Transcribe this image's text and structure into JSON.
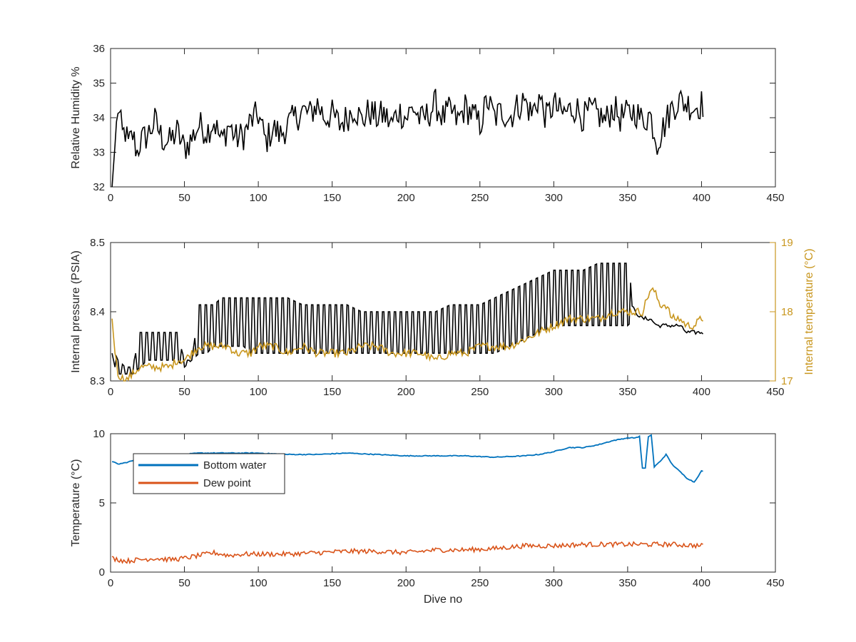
{
  "figure": {
    "xlabel": "Dive no"
  },
  "colors": {
    "axis": "#262626",
    "rh_line": "#000000",
    "pressure_line": "#000000",
    "internal_temp_line": "#C8961E",
    "bottom_water": "#0072BD",
    "dew_point": "#D95319"
  },
  "chart_data": [
    {
      "id": "rh",
      "type": "line",
      "title": "",
      "xlabel": "",
      "ylabel": "Relative Humidity %",
      "xlim": [
        0,
        450
      ],
      "ylim": [
        32,
        36
      ],
      "xticks": [
        0,
        50,
        100,
        150,
        200,
        250,
        300,
        350,
        400,
        450
      ],
      "yticks": [
        32,
        33,
        34,
        35,
        36
      ],
      "grid": false,
      "series": [
        {
          "x": [
            1,
            3,
            5,
            8,
            10,
            12,
            15,
            18,
            20,
            25,
            30,
            35,
            40,
            45,
            50,
            55,
            60,
            65,
            70,
            75,
            80,
            85,
            90,
            95,
            100,
            105,
            110,
            115,
            120,
            125,
            130,
            135,
            140,
            145,
            150,
            155,
            160,
            165,
            170,
            175,
            180,
            185,
            190,
            195,
            200,
            205,
            210,
            215,
            220,
            225,
            230,
            235,
            240,
            245,
            250,
            255,
            260,
            265,
            270,
            275,
            280,
            285,
            290,
            295,
            300,
            305,
            310,
            315,
            320,
            325,
            330,
            335,
            340,
            345,
            350,
            355,
            360,
            365,
            370,
            375,
            380,
            385,
            390,
            395,
            400
          ],
          "y": [
            32.0,
            33.2,
            34.3,
            33.5,
            33.6,
            33.2,
            33.5,
            33.0,
            33.3,
            33.5,
            33.9,
            33.4,
            33.3,
            33.6,
            33.1,
            33.4,
            33.8,
            33.6,
            33.9,
            33.3,
            33.8,
            33.4,
            33.5,
            33.9,
            34.1,
            33.3,
            33.7,
            33.5,
            33.8,
            34.0,
            34.2,
            34.1,
            34.4,
            34.0,
            34.1,
            33.8,
            34.0,
            34.3,
            33.9,
            34.2,
            34.0,
            34.1,
            33.8,
            34.2,
            34.0,
            34.3,
            33.9,
            34.1,
            34.4,
            34.0,
            34.2,
            33.9,
            34.3,
            34.1,
            33.8,
            34.5,
            34.0,
            34.2,
            34.0,
            34.3,
            34.5,
            34.1,
            34.6,
            34.0,
            34.4,
            34.1,
            34.2,
            34.3,
            34.0,
            34.2,
            34.1,
            33.9,
            34.3,
            34.0,
            34.1,
            34.2,
            33.9,
            34.1,
            33.3,
            33.8,
            34.3,
            34.5,
            34.4,
            34.3,
            34.4
          ],
          "color": "#000000"
        }
      ]
    },
    {
      "id": "pressure",
      "type": "line",
      "title": "",
      "xlabel": "",
      "ylabel": "Internal pressure (PSIA)",
      "ylabel_right": "Internal temperature (°C)",
      "xlim": [
        0,
        450
      ],
      "ylim": [
        8.3,
        8.5
      ],
      "ylim_right": [
        17,
        19
      ],
      "xticks": [
        0,
        50,
        100,
        150,
        200,
        250,
        300,
        350,
        400,
        450
      ],
      "yticks": [
        8.3,
        8.4,
        8.5
      ],
      "yticks_right": [
        17,
        18,
        19
      ],
      "grid": false,
      "series": [
        {
          "axis": "left",
          "x": [
            1,
            3,
            5,
            10,
            15,
            20,
            25,
            30,
            35,
            40,
            45,
            50,
            55,
            60,
            65,
            70,
            75,
            80,
            85,
            90,
            95,
            100,
            110,
            120,
            130,
            140,
            150,
            160,
            170,
            180,
            190,
            200,
            210,
            220,
            230,
            240,
            250,
            260,
            270,
            280,
            290,
            300,
            310,
            320,
            330,
            340,
            350,
            355,
            360,
            365,
            370,
            375,
            380,
            385,
            390,
            395,
            400
          ],
          "y": [
            8.34,
            8.32,
            8.32,
            8.31,
            8.31,
            8.32,
            8.35,
            8.36,
            8.35,
            8.35,
            8.34,
            8.33,
            8.33,
            8.37,
            8.38,
            8.38,
            8.39,
            8.39,
            8.39,
            8.39,
            8.38,
            8.38,
            8.38,
            8.38,
            8.37,
            8.37,
            8.37,
            8.37,
            8.37,
            8.37,
            8.37,
            8.37,
            8.37,
            8.37,
            8.37,
            8.38,
            8.38,
            8.38,
            8.39,
            8.4,
            8.41,
            8.41,
            8.41,
            8.42,
            8.42,
            8.42,
            8.42,
            8.4,
            8.39,
            8.39,
            8.38,
            8.38,
            8.38,
            8.38,
            8.37,
            8.37,
            8.37
          ],
          "y_high": [
            8.34,
            8.34,
            8.33,
            8.32,
            8.32,
            8.37,
            8.37,
            8.37,
            8.37,
            8.37,
            8.37,
            8.33,
            8.33,
            8.41,
            8.41,
            8.41,
            8.42,
            8.42,
            8.42,
            8.42,
            8.42,
            8.42,
            8.42,
            8.42,
            8.41,
            8.41,
            8.41,
            8.41,
            8.4,
            8.4,
            8.4,
            8.4,
            8.4,
            8.4,
            8.41,
            8.41,
            8.41,
            8.42,
            8.43,
            8.44,
            8.45,
            8.46,
            8.46,
            8.46,
            8.47,
            8.47,
            8.47,
            8.4,
            8.39,
            8.39,
            8.38,
            8.38,
            8.38,
            8.38,
            8.37,
            8.37,
            8.37
          ],
          "y_low": [
            8.34,
            8.32,
            8.31,
            8.31,
            8.31,
            8.32,
            8.33,
            8.33,
            8.33,
            8.33,
            8.33,
            8.32,
            8.33,
            8.34,
            8.34,
            8.35,
            8.35,
            8.35,
            8.35,
            8.35,
            8.34,
            8.34,
            8.34,
            8.34,
            8.34,
            8.34,
            8.34,
            8.34,
            8.34,
            8.34,
            8.34,
            8.34,
            8.34,
            8.34,
            8.34,
            8.34,
            8.34,
            8.34,
            8.35,
            8.36,
            8.37,
            8.38,
            8.38,
            8.38,
            8.38,
            8.38,
            8.38,
            8.39,
            8.38,
            8.38,
            8.37,
            8.37,
            8.37,
            8.37,
            8.36,
            8.36,
            8.37
          ],
          "color": "#000000"
        },
        {
          "axis": "right",
          "x": [
            1,
            3,
            5,
            10,
            15,
            20,
            25,
            30,
            35,
            40,
            45,
            50,
            55,
            60,
            65,
            70,
            75,
            80,
            85,
            90,
            95,
            100,
            110,
            120,
            130,
            140,
            150,
            160,
            170,
            180,
            190,
            200,
            210,
            220,
            230,
            240,
            250,
            260,
            270,
            280,
            290,
            300,
            310,
            320,
            330,
            340,
            350,
            355,
            360,
            365,
            368,
            372,
            376,
            380,
            385,
            390,
            395,
            400
          ],
          "y": [
            17.9,
            17.4,
            17.1,
            17.0,
            17.1,
            17.2,
            17.2,
            17.2,
            17.2,
            17.2,
            17.3,
            17.3,
            17.4,
            17.5,
            17.5,
            17.5,
            17.5,
            17.5,
            17.4,
            17.4,
            17.4,
            17.5,
            17.5,
            17.4,
            17.5,
            17.4,
            17.4,
            17.4,
            17.5,
            17.5,
            17.4,
            17.4,
            17.4,
            17.3,
            17.4,
            17.4,
            17.5,
            17.5,
            17.5,
            17.6,
            17.7,
            17.8,
            17.9,
            17.9,
            17.9,
            18.0,
            18.0,
            18.0,
            18.0,
            18.3,
            18.3,
            18.1,
            18.1,
            17.9,
            17.9,
            17.8,
            17.8,
            17.9
          ],
          "color": "#C8961E"
        }
      ]
    },
    {
      "id": "temperature",
      "type": "line",
      "title": "",
      "xlabel": "Dive no",
      "ylabel": "Temperature (°C)",
      "xlim": [
        0,
        450
      ],
      "ylim": [
        0,
        10
      ],
      "xticks": [
        0,
        50,
        100,
        150,
        200,
        250,
        300,
        350,
        400,
        450
      ],
      "yticks": [
        0,
        5,
        10
      ],
      "grid": false,
      "legend": "top-left",
      "series": [
        {
          "name": "Bottom water",
          "x": [
            1,
            5,
            10,
            20,
            30,
            40,
            50,
            60,
            70,
            80,
            90,
            100,
            120,
            140,
            160,
            180,
            200,
            220,
            240,
            260,
            280,
            290,
            300,
            310,
            320,
            330,
            340,
            350,
            355,
            358,
            360,
            362,
            364,
            366,
            368,
            372,
            376,
            380,
            385,
            390,
            395,
            400
          ],
          "y": [
            8.0,
            7.8,
            7.9,
            8.2,
            8.4,
            8.5,
            8.5,
            8.6,
            8.6,
            8.6,
            8.6,
            8.6,
            8.5,
            8.5,
            8.6,
            8.5,
            8.4,
            8.4,
            8.4,
            8.3,
            8.4,
            8.5,
            8.7,
            9.0,
            9.0,
            9.2,
            9.5,
            9.7,
            9.7,
            9.8,
            7.5,
            7.5,
            9.8,
            9.9,
            7.6,
            8.0,
            8.5,
            7.8,
            7.3,
            6.8,
            6.5,
            7.3
          ],
          "color": "#0072BD"
        },
        {
          "name": "Dew point",
          "x": [
            1,
            10,
            20,
            30,
            40,
            50,
            60,
            70,
            80,
            90,
            100,
            120,
            140,
            160,
            180,
            200,
            220,
            240,
            260,
            280,
            300,
            320,
            340,
            360,
            380,
            400
          ],
          "y": [
            1.0,
            0.8,
            0.9,
            1.0,
            0.9,
            1.0,
            1.2,
            1.4,
            1.2,
            1.3,
            1.3,
            1.3,
            1.4,
            1.5,
            1.5,
            1.4,
            1.6,
            1.6,
            1.7,
            1.9,
            1.9,
            2.0,
            2.0,
            2.0,
            2.0,
            1.9
          ],
          "color": "#D95319"
        }
      ]
    }
  ]
}
